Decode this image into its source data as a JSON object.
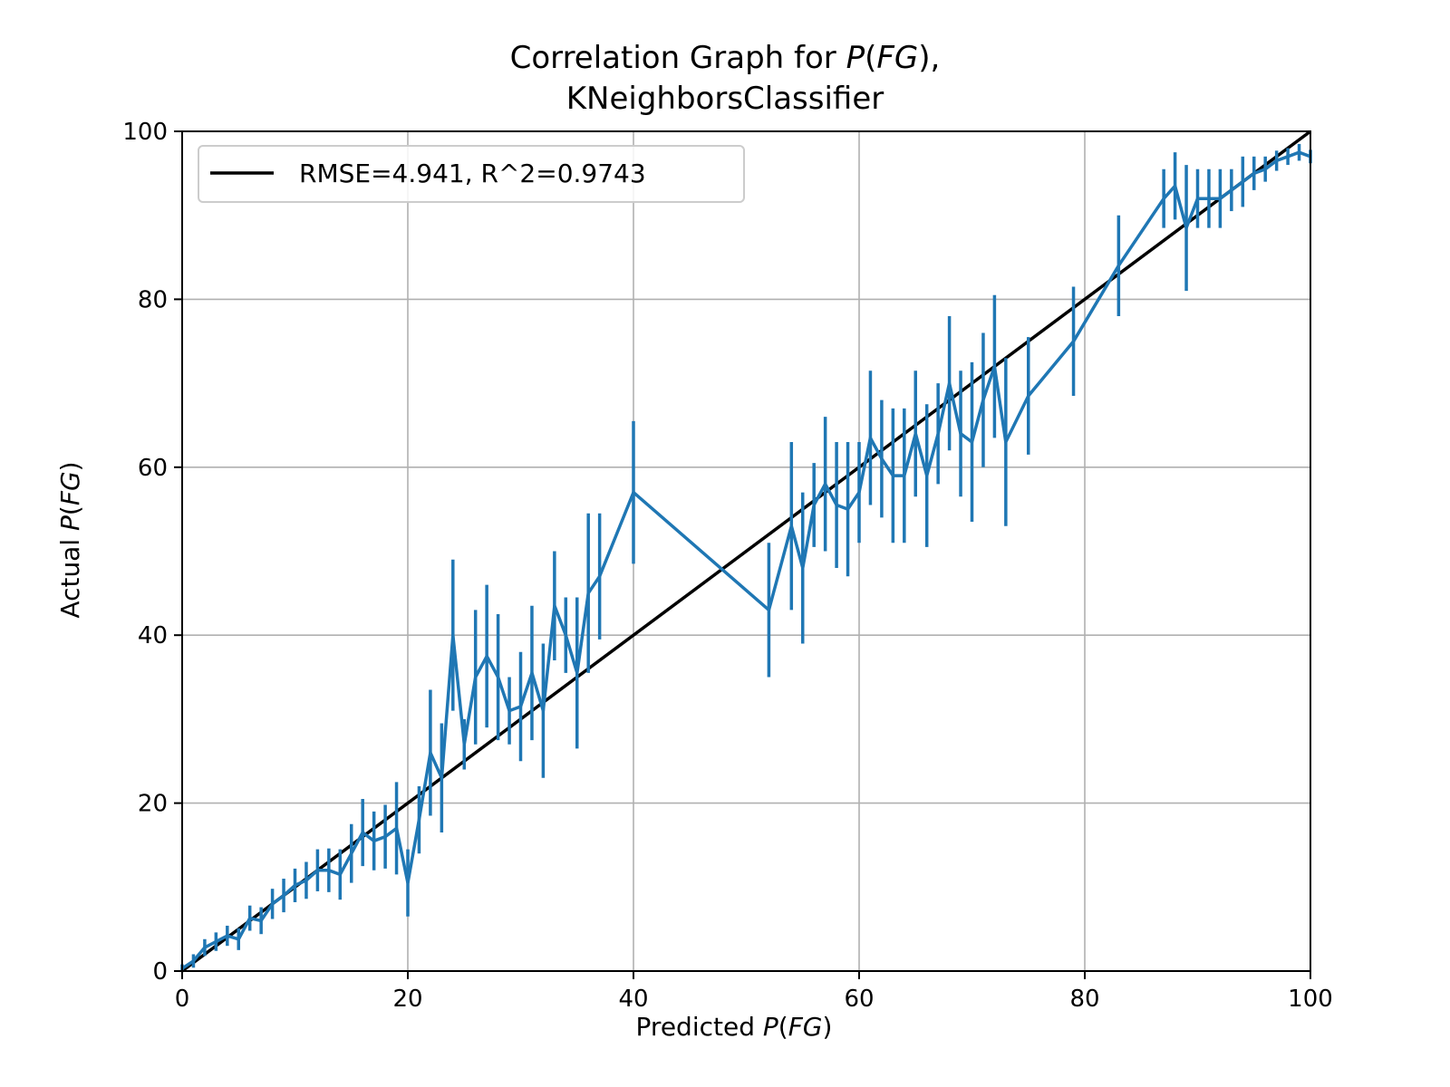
{
  "chart_data": {
    "type": "line",
    "title": {
      "line1": {
        "prefix": "Correlation Graph for ",
        "italic": "P",
        "suffix_open": "(",
        "italic2": "FG",
        "suffix_close": "),"
      },
      "line2": "KNeighborsClassifier"
    },
    "xlabel": {
      "prefix": "Predicted ",
      "italic": "P",
      "open": "(",
      "italic2": "FG",
      "close": ")"
    },
    "ylabel": {
      "prefix": "Actual ",
      "italic": "P",
      "open": "(",
      "italic2": "FG",
      "close": ")"
    },
    "xlim": [
      0,
      100
    ],
    "ylim": [
      0,
      100
    ],
    "xticks": [
      0,
      20,
      40,
      60,
      80,
      100
    ],
    "yticks": [
      0,
      20,
      40,
      60,
      80,
      100
    ],
    "grid": true,
    "legend": {
      "placement": "upper-left",
      "label": "RMSE=4.941, R^2=0.9743"
    },
    "colors": {
      "reference": "#000000",
      "series": "#1f77b4",
      "grid": "#b0b0b0"
    },
    "reference_line": {
      "x": [
        0,
        100
      ],
      "y": [
        0,
        100
      ]
    },
    "series": [
      {
        "x": [
          0,
          1,
          2,
          3,
          4,
          5,
          6,
          7,
          8,
          9,
          10,
          11,
          12,
          13,
          14,
          15,
          16,
          17,
          18,
          19,
          20,
          21,
          22,
          23,
          24,
          25,
          26,
          27,
          28,
          29,
          30,
          31,
          32,
          33,
          34,
          35,
          36,
          37,
          40,
          52,
          54,
          55,
          56,
          57,
          58,
          59,
          60,
          61,
          62,
          63,
          64,
          65,
          66,
          67,
          68,
          69,
          70,
          71,
          72,
          73,
          75,
          79,
          83,
          87,
          88,
          89,
          90,
          91,
          92,
          93,
          94,
          95,
          96,
          97,
          98,
          99,
          100
        ],
        "y": [
          0.3,
          1.2,
          2.8,
          3.5,
          4.2,
          3.8,
          6.3,
          6.0,
          8.0,
          9.0,
          10.2,
          10.8,
          12.0,
          12.0,
          11.5,
          14.0,
          16.5,
          15.5,
          16.0,
          17.0,
          10.5,
          18.0,
          26.0,
          23.0,
          40.0,
          27.0,
          35.0,
          37.5,
          35.0,
          31.0,
          31.5,
          35.5,
          31.0,
          43.5,
          40.0,
          35.5,
          45.0,
          47.0,
          57.0,
          43.0,
          53.0,
          48.0,
          55.5,
          58.0,
          55.5,
          55.0,
          57.0,
          63.5,
          61.0,
          59.0,
          59.0,
          64.0,
          59.0,
          64.0,
          70.0,
          64.0,
          63.0,
          68.0,
          72.0,
          63.0,
          68.5,
          75.0,
          84.0,
          92.0,
          93.5,
          88.5,
          92.0,
          92.0,
          92.0,
          93.0,
          94.0,
          95.0,
          95.5,
          96.5,
          97.0,
          97.5,
          97.0
        ],
        "err": [
          0.5,
          0.8,
          1.0,
          1.1,
          1.2,
          1.3,
          1.5,
          1.6,
          1.8,
          2.0,
          2.0,
          2.2,
          2.5,
          2.6,
          3.0,
          3.5,
          4.0,
          3.5,
          3.8,
          5.5,
          4.0,
          4.0,
          7.5,
          6.5,
          9.0,
          3.0,
          8.0,
          8.5,
          7.5,
          4.0,
          6.5,
          8.0,
          8.0,
          6.5,
          4.5,
          9.0,
          9.5,
          7.5,
          8.5,
          8.0,
          10.0,
          9.0,
          5.0,
          8.0,
          7.5,
          8.0,
          6.0,
          8.0,
          7.0,
          8.0,
          8.0,
          7.5,
          8.5,
          6.0,
          8.0,
          7.5,
          9.5,
          8.0,
          8.5,
          10.0,
          7.0,
          6.5,
          6.0,
          3.5,
          4.0,
          7.5,
          3.5,
          3.5,
          3.5,
          2.5,
          3.0,
          2.0,
          1.5,
          1.2,
          1.0,
          1.0,
          0.8
        ]
      }
    ]
  }
}
